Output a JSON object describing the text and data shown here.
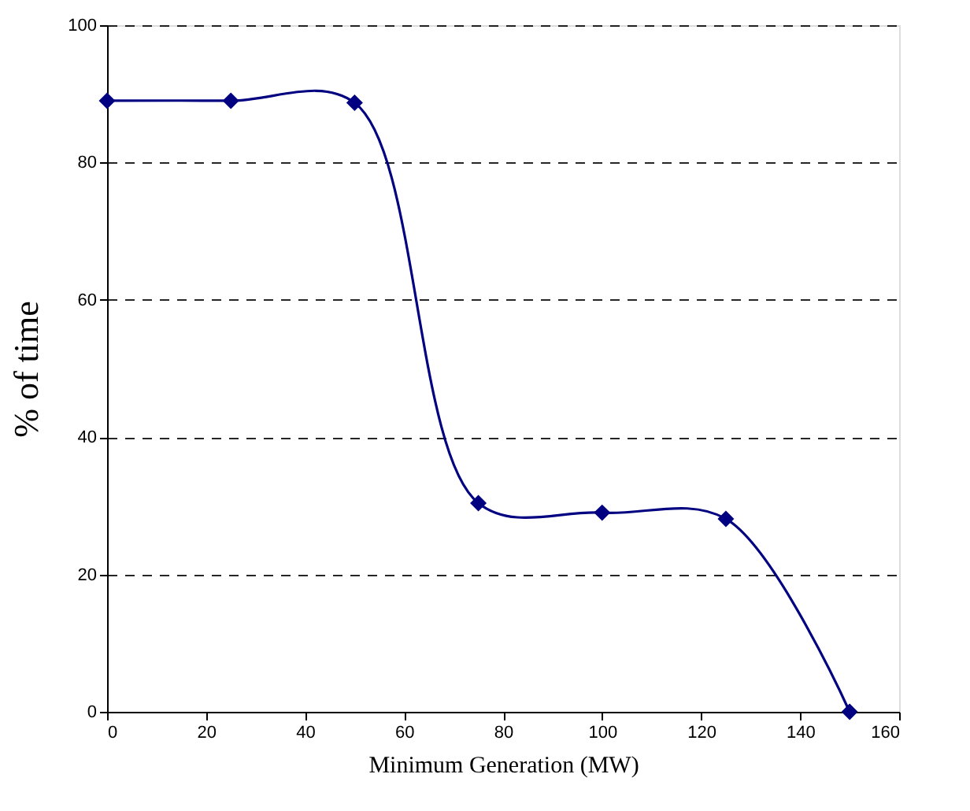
{
  "chart_data": {
    "type": "line",
    "xlabel": "Minimum Generation (MW)",
    "ylabel": "% of time",
    "x": [
      0,
      25,
      50,
      75,
      100,
      125,
      150
    ],
    "series": [
      {
        "color": "#000080",
        "values": [
          89,
          89,
          88.7,
          30.4,
          29,
          28.1,
          0
        ]
      }
    ],
    "xlim": [
      0,
      160
    ],
    "xticks": [
      0,
      20,
      40,
      60,
      80,
      100,
      120,
      140,
      160
    ],
    "ylim": [
      0,
      100
    ],
    "yticks": [
      0,
      20,
      40,
      60,
      80,
      100
    ],
    "grid": "y",
    "marker": "diamond",
    "line_style": "solid"
  }
}
